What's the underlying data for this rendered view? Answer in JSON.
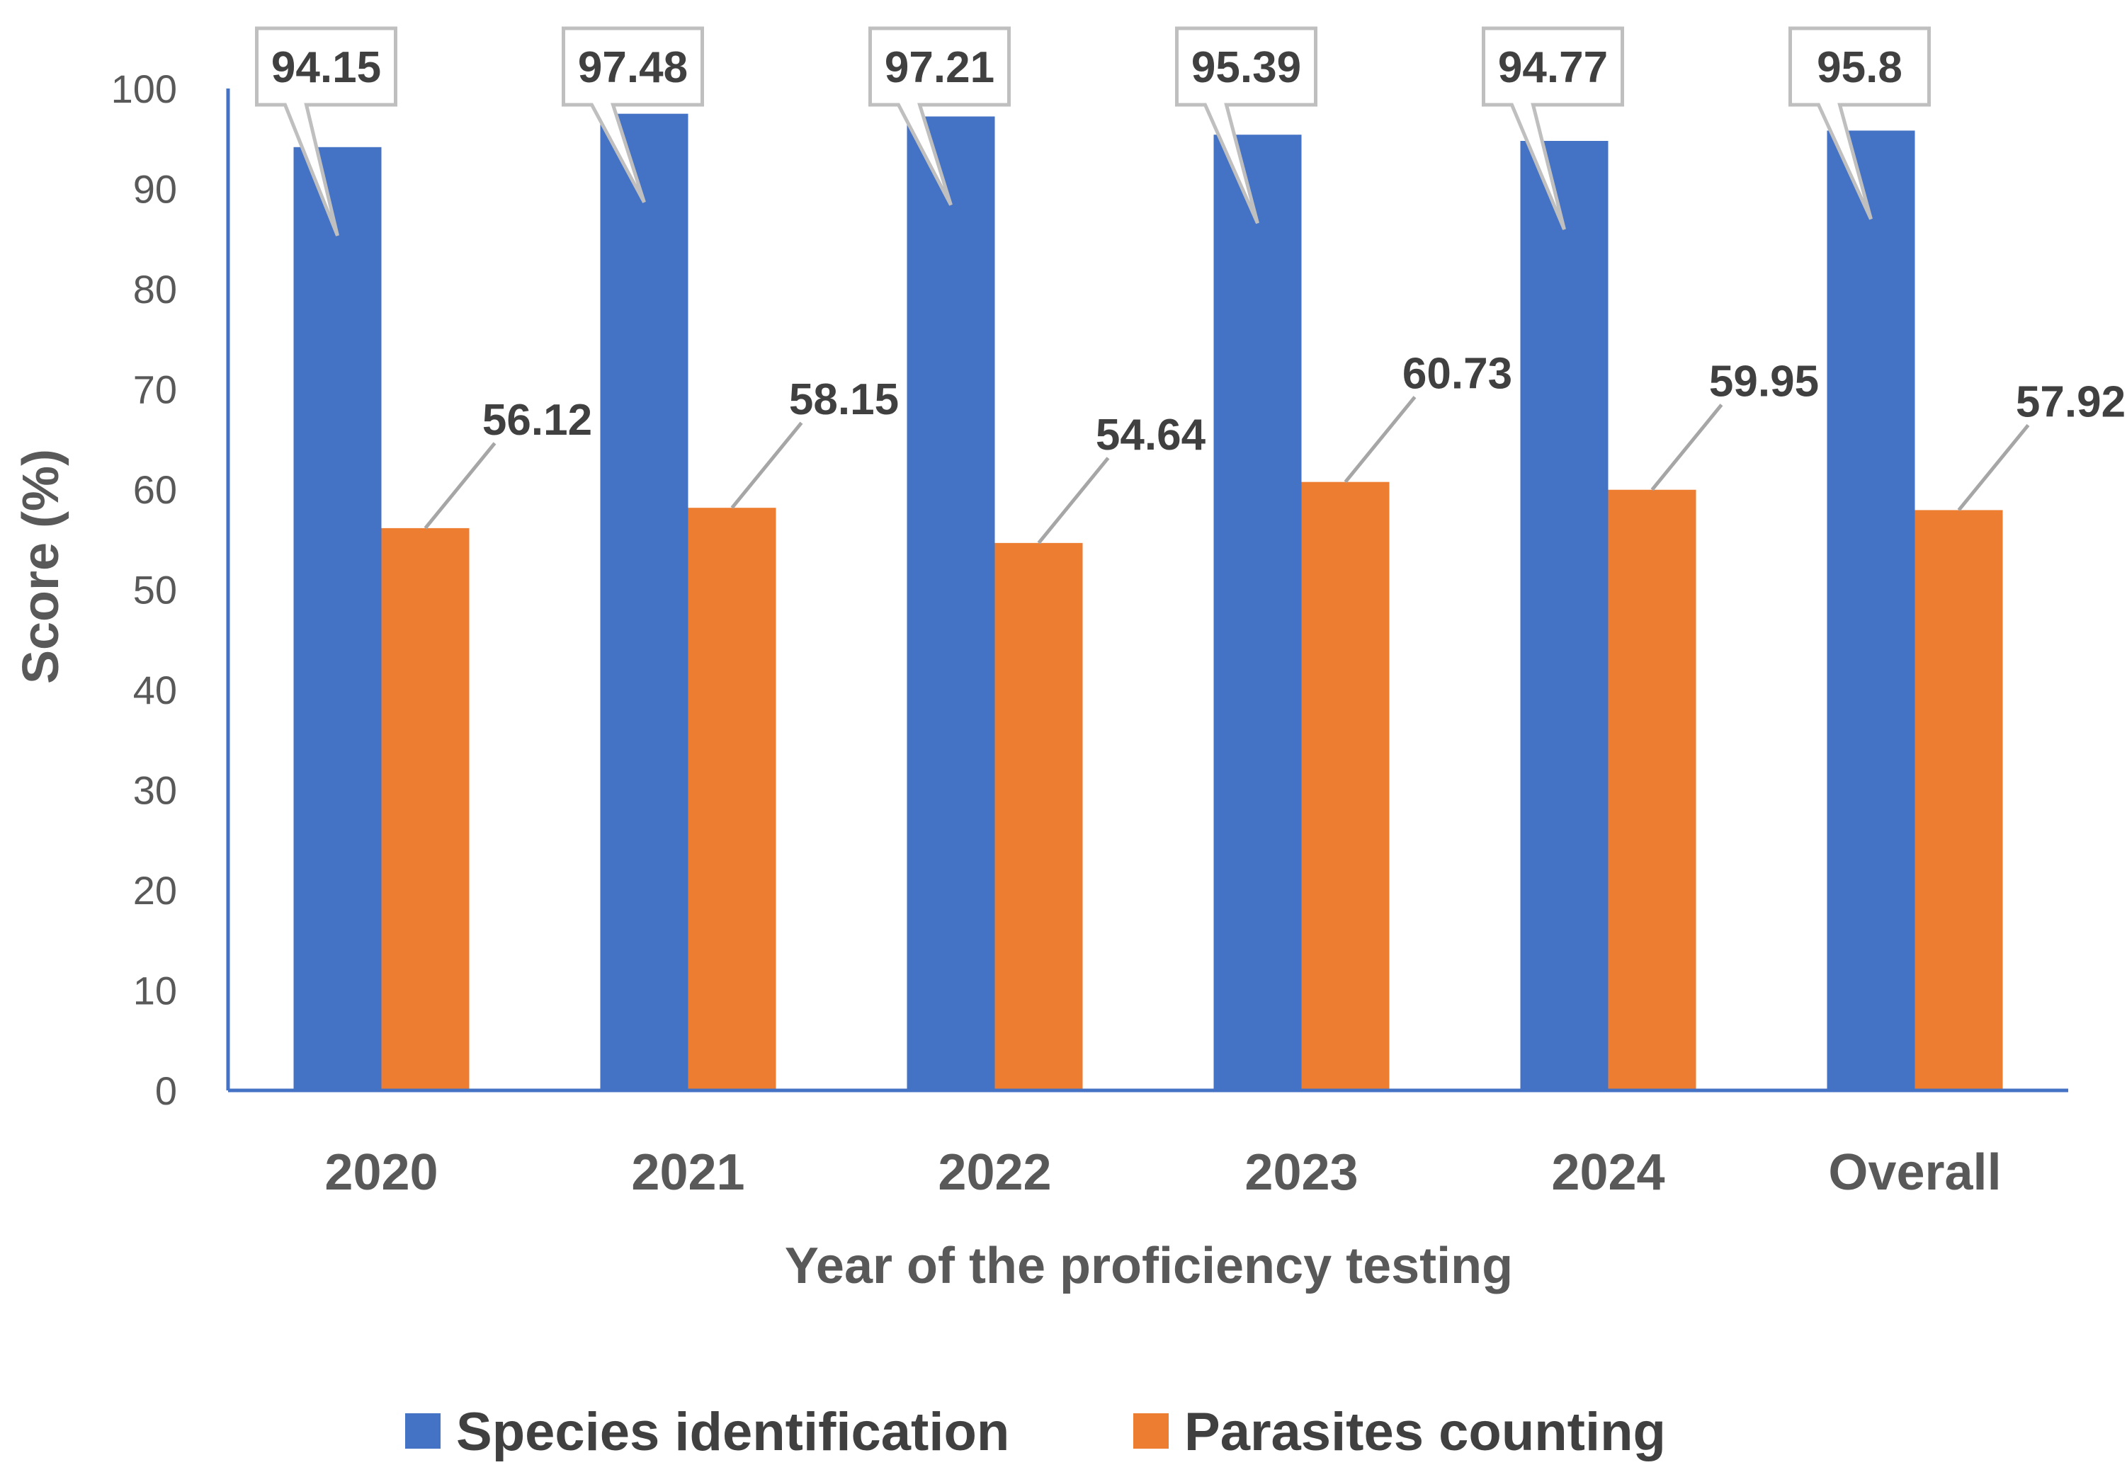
{
  "chart_data": {
    "type": "bar",
    "title": "",
    "xlabel": "Year of the proficiency testing",
    "ylabel": "Score (%)",
    "ylim": [
      0,
      100
    ],
    "yticks": [
      0,
      10,
      20,
      30,
      40,
      50,
      60,
      70,
      80,
      90,
      100
    ],
    "grid": false,
    "legend_position": "bottom",
    "categories": [
      "2020",
      "2021",
      "2022",
      "2023",
      "2024",
      "Overall"
    ],
    "series": [
      {
        "name": "Species identification",
        "color": "#4472c4",
        "values": [
          94.15,
          97.48,
          97.21,
          95.39,
          94.77,
          95.8
        ],
        "labels": [
          "94.15",
          "97.48",
          "97.21",
          "95.39",
          "94.77",
          "95.8"
        ]
      },
      {
        "name": "Parasites counting",
        "color": "#ed7d31",
        "values": [
          56.12,
          58.15,
          54.64,
          60.73,
          59.95,
          57.92
        ],
        "labels": [
          "56.12",
          "58.15",
          "54.64",
          "60.73",
          "59.95",
          "57.92"
        ]
      }
    ]
  }
}
